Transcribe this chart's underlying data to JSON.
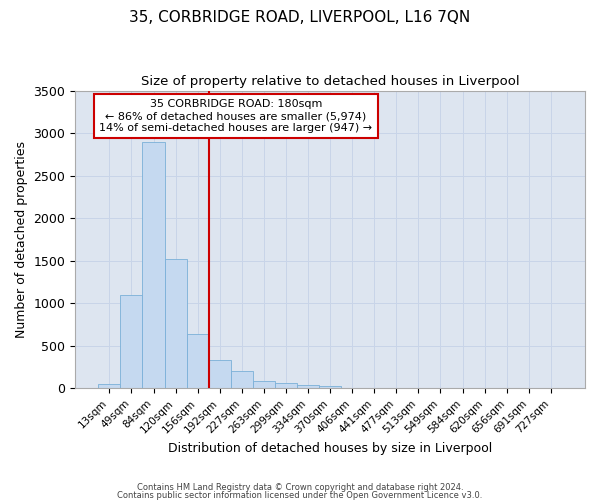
{
  "title": "35, CORBRIDGE ROAD, LIVERPOOL, L16 7QN",
  "subtitle": "Size of property relative to detached houses in Liverpool",
  "xlabel": "Distribution of detached houses by size in Liverpool",
  "ylabel": "Number of detached properties",
  "categories": [
    "13sqm",
    "49sqm",
    "84sqm",
    "120sqm",
    "156sqm",
    "192sqm",
    "227sqm",
    "263sqm",
    "299sqm",
    "334sqm",
    "370sqm",
    "406sqm",
    "441sqm",
    "477sqm",
    "513sqm",
    "549sqm",
    "584sqm",
    "620sqm",
    "656sqm",
    "691sqm",
    "727sqm"
  ],
  "bar_heights": [
    50,
    1100,
    2900,
    1520,
    640,
    330,
    200,
    90,
    60,
    40,
    30,
    0,
    0,
    0,
    0,
    0,
    0,
    0,
    0,
    0,
    0
  ],
  "bar_color": "#c5d9f0",
  "bar_edge_color": "#7ab0d8",
  "red_line_color": "#cc0000",
  "annotation_text": "35 CORBRIDGE ROAD: 180sqm\n← 86% of detached houses are smaller (5,974)\n14% of semi-detached houses are larger (947) →",
  "annotation_box_color": "#ffffff",
  "annotation_box_edge_color": "#cc0000",
  "ylim": [
    0,
    3500
  ],
  "grid_color": "#c8d4e8",
  "background_color": "#dde5f0",
  "title_fontsize": 11,
  "subtitle_fontsize": 9.5,
  "footnote_line1": "Contains HM Land Registry data © Crown copyright and database right 2024.",
  "footnote_line2": "Contains public sector information licensed under the Open Government Licence v3.0."
}
